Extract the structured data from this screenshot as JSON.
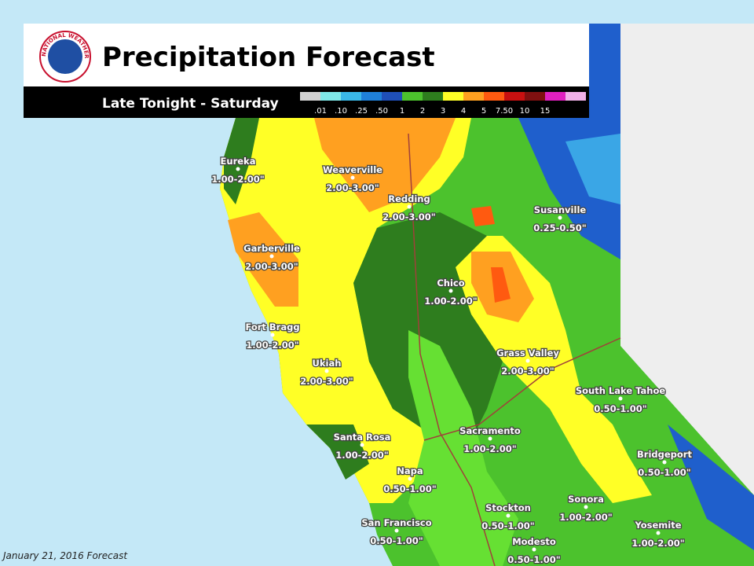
{
  "header": {
    "title": "Precipitation Forecast",
    "subtitle": "Late Tonight - Saturday",
    "logo_text": "NATIONAL WEATHER SERVICE"
  },
  "legend": {
    "labels": [
      ".01",
      ".10",
      ".25",
      ".50",
      "1",
      "2",
      "3",
      "4",
      "5",
      "7.50",
      "10",
      "15"
    ]
  },
  "cities": [
    {
      "name": "Eureka",
      "amount": "1.00-2.00\""
    },
    {
      "name": "Weaverville",
      "amount": "2.00-3.00\""
    },
    {
      "name": "Redding",
      "amount": "2.00-3.00\""
    },
    {
      "name": "Susanville",
      "amount": "0.25-0.50\""
    },
    {
      "name": "Garberville",
      "amount": "2.00-3.00\""
    },
    {
      "name": "Chico",
      "amount": "1.00-2.00\""
    },
    {
      "name": "Fort Bragg",
      "amount": "1.00-2.00\""
    },
    {
      "name": "Grass Valley",
      "amount": "2.00-3.00\""
    },
    {
      "name": "Ukiah",
      "amount": "2.00-3.00\""
    },
    {
      "name": "South Lake Tahoe",
      "amount": "0.50-1.00\""
    },
    {
      "name": "Santa Rosa",
      "amount": "1.00-2.00\""
    },
    {
      "name": "Sacramento",
      "amount": "1.00-2.00\""
    },
    {
      "name": "Bridgeport",
      "amount": "0.50-1.00\""
    },
    {
      "name": "Napa",
      "amount": "0.50-1.00\""
    },
    {
      "name": "Sonora",
      "amount": "1.00-2.00\""
    },
    {
      "name": "Stockton",
      "amount": "0.50-1.00\""
    },
    {
      "name": "San Francisco",
      "amount": "0.50-1.00\""
    },
    {
      "name": "Yosemite",
      "amount": "1.00-2.00\""
    },
    {
      "name": "Modesto",
      "amount": "0.50-1.00\""
    }
  ],
  "footer": "January 21, 2016 Forecast"
}
